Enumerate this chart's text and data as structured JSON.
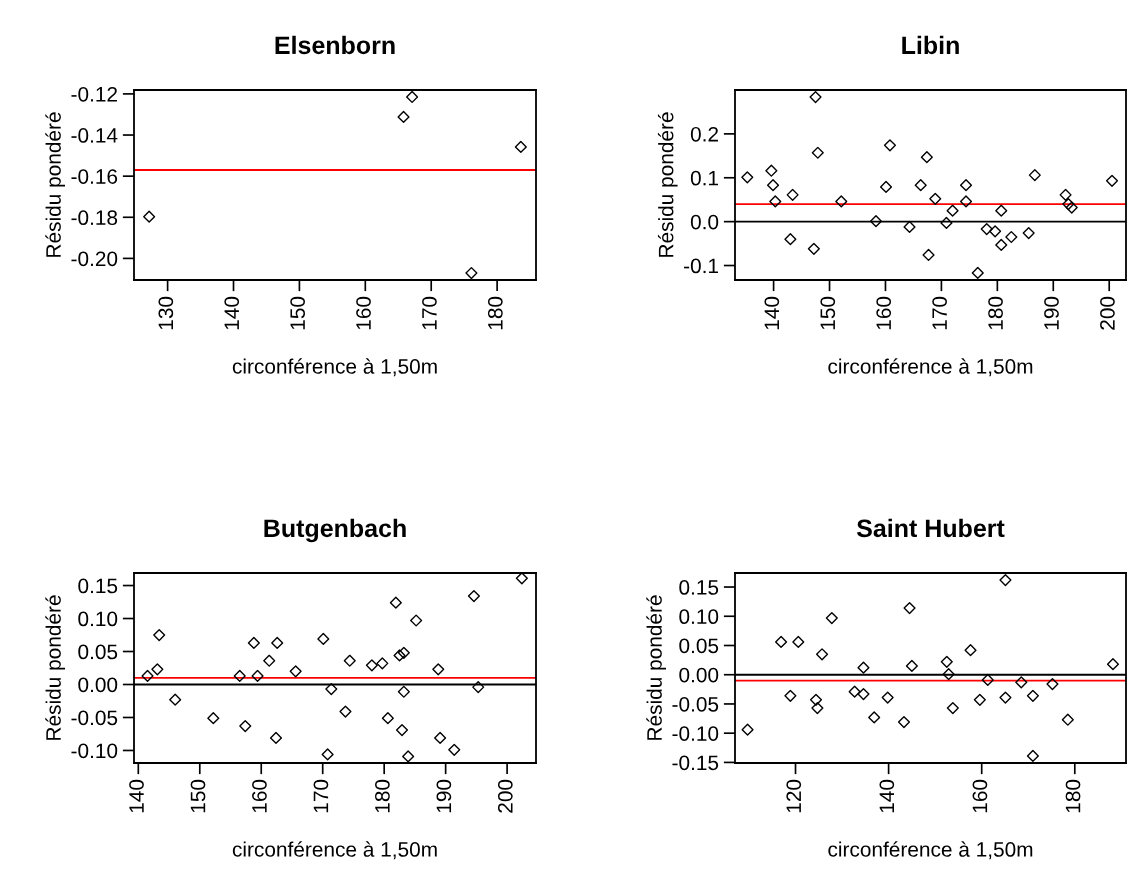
{
  "chart_data": [
    {
      "type": "scatter",
      "title": "Elsenborn",
      "xlabel": "circonférence à 1,50m",
      "ylabel": "Résidu pondéré",
      "marker": "diamond",
      "series": [
        {
          "color": "#000000",
          "x": [
            127.2,
            165.8,
            167.1,
            176.1,
            183.6
          ],
          "values": [
            -0.1797,
            -0.1312,
            -0.1215,
            -0.2071,
            -0.1458
          ]
        }
      ],
      "xlim": [
        124.9,
        185.9
      ],
      "xticks": [
        130,
        140,
        150,
        160,
        170,
        180
      ],
      "ylim": [
        -0.2105,
        -0.1181
      ],
      "yticks": [
        {
          "value": -0.2,
          "label": "-0.20"
        },
        {
          "value": -0.18,
          "label": "-0.18"
        },
        {
          "value": -0.16,
          "label": "-0.16"
        },
        {
          "value": -0.14,
          "label": "-0.14"
        },
        {
          "value": -0.12,
          "label": "-0.12"
        }
      ],
      "ref_lines": [
        {
          "axis": "y",
          "value": -0.157,
          "color": "#ff0000"
        }
      ]
    },
    {
      "type": "scatter",
      "title": "Libin",
      "xlabel": "circonférence à 1,50m",
      "ylabel": "Résidu pondéré",
      "marker": "diamond",
      "series": [
        {
          "color": "#000000",
          "x": [
            135.3,
            139.6,
            139.9,
            140.3,
            143.4,
            143.0,
            147.5,
            147.9,
            147.2,
            152.1,
            158.3,
            160.1,
            160.8,
            164.3,
            166.3,
            167.4,
            167.7,
            168.9,
            170.9,
            172.0,
            174.4,
            174.4,
            176.5,
            178.1,
            179.6,
            180.7,
            180.7,
            182.5,
            185.6,
            186.7,
            192.2,
            192.7,
            193.3,
            200.5
          ],
          "values": [
            0.101,
            0.116,
            0.083,
            0.046,
            0.061,
            -0.04,
            0.284,
            0.157,
            -0.062,
            0.046,
            0.001,
            0.079,
            0.174,
            -0.012,
            0.083,
            0.147,
            -0.076,
            0.052,
            -0.003,
            0.025,
            0.083,
            0.046,
            -0.117,
            -0.017,
            -0.022,
            0.025,
            -0.053,
            -0.035,
            -0.026,
            0.106,
            0.061,
            0.04,
            0.032,
            0.093
          ]
        }
      ],
      "xlim": [
        133.1,
        203
      ],
      "xticks": [
        140,
        150,
        160,
        170,
        180,
        190,
        200
      ],
      "ylim": [
        -0.133,
        0.3
      ],
      "yticks": [
        {
          "value": -0.1,
          "label": "-0.1"
        },
        {
          "value": 0,
          "label": "0.0"
        },
        {
          "value": 0.1,
          "label": "0.1"
        },
        {
          "value": 0.2,
          "label": "0.2"
        }
      ],
      "ref_lines": [
        {
          "axis": "y",
          "value": 0,
          "color": "#000000"
        },
        {
          "axis": "y",
          "value": 0.04,
          "color": "#ff0000"
        }
      ]
    },
    {
      "type": "scatter",
      "title": "Butgenbach",
      "xlabel": "circonférence à 1,50m",
      "ylabel": "Résidu pondéré",
      "marker": "diamond",
      "series": [
        {
          "color": "#000000",
          "x": [
            141.5,
            143.1,
            143.4,
            146.0,
            152.2,
            156.5,
            157.4,
            158.8,
            159.4,
            161.3,
            162.4,
            162.6,
            165.6,
            170.1,
            170.8,
            171.4,
            173.7,
            174.4,
            178.0,
            179.7,
            180.6,
            181.9,
            182.5,
            183.2,
            183.2,
            182.9,
            183.9,
            185.2,
            188.8,
            189.1,
            191.4,
            194.6,
            195.3,
            202.4
          ],
          "values": [
            0.013,
            0.023,
            0.075,
            -0.023,
            -0.051,
            0.013,
            -0.063,
            0.063,
            0.013,
            0.036,
            -0.081,
            0.063,
            0.02,
            0.069,
            -0.106,
            -0.007,
            -0.041,
            0.036,
            0.029,
            0.032,
            -0.051,
            0.124,
            0.044,
            0.048,
            -0.011,
            -0.069,
            -0.109,
            0.097,
            0.023,
            -0.081,
            -0.099,
            0.134,
            -0.004,
            0.161
          ]
        }
      ],
      "xlim": [
        139.3,
        204.7
      ],
      "xticks": [
        140,
        150,
        160,
        170,
        180,
        190,
        200
      ],
      "ylim": [
        -0.119,
        0.169
      ],
      "yticks": [
        {
          "value": -0.1,
          "label": "-0.10"
        },
        {
          "value": -0.05,
          "label": "-0.05"
        },
        {
          "value": 0,
          "label": "0.00"
        },
        {
          "value": 0.05,
          "label": "0.05"
        },
        {
          "value": 0.1,
          "label": "0.10"
        },
        {
          "value": 0.15,
          "label": "0.15"
        }
      ],
      "ref_lines": [
        {
          "axis": "y",
          "value": 0,
          "color": "#000000"
        },
        {
          "axis": "y",
          "value": 0.01,
          "color": "#ff0000"
        }
      ]
    },
    {
      "type": "scatter",
      "title": "Saint Hubert",
      "xlabel": "circonférence à 1,50m",
      "ylabel": "Résidu pondéré",
      "marker": "diamond",
      "series": [
        {
          "color": "#000000",
          "x": [
            109.7,
            116.9,
            118.9,
            120.6,
            124.4,
            124.7,
            125.7,
            127.8,
            132.7,
            134.6,
            134.6,
            136.9,
            139.8,
            143.3,
            144.5,
            145.0,
            152.5,
            152.9,
            153.8,
            157.6,
            159.6,
            161.3,
            165.1,
            165.1,
            168.5,
            171.0,
            171.0,
            175.2,
            178.5,
            188.2
          ],
          "values": [
            -0.094,
            0.056,
            -0.036,
            0.056,
            -0.043,
            -0.057,
            0.035,
            0.097,
            -0.029,
            0.012,
            -0.033,
            -0.073,
            -0.039,
            -0.081,
            0.114,
            0.015,
            0.022,
            0.001,
            -0.057,
            0.042,
            -0.043,
            -0.009,
            0.162,
            -0.039,
            -0.013,
            -0.036,
            -0.139,
            -0.016,
            -0.077,
            0.018
          ]
        }
      ],
      "xlim": [
        107.0,
        191
      ],
      "xticks": [
        120,
        140,
        160,
        180
      ],
      "ylim": [
        -0.151,
        0.174
      ],
      "yticks": [
        {
          "value": -0.15,
          "label": "-0.15"
        },
        {
          "value": -0.1,
          "label": "-0.10"
        },
        {
          "value": -0.05,
          "label": "-0.05"
        },
        {
          "value": 0,
          "label": "0.00"
        },
        {
          "value": 0.05,
          "label": "0.05"
        },
        {
          "value": 0.1,
          "label": "0.10"
        },
        {
          "value": 0.15,
          "label": "0.15"
        }
      ],
      "ref_lines": [
        {
          "axis": "y",
          "value": 0,
          "color": "#000000"
        },
        {
          "axis": "y",
          "value": -0.01,
          "color": "#ff0000"
        }
      ]
    }
  ]
}
